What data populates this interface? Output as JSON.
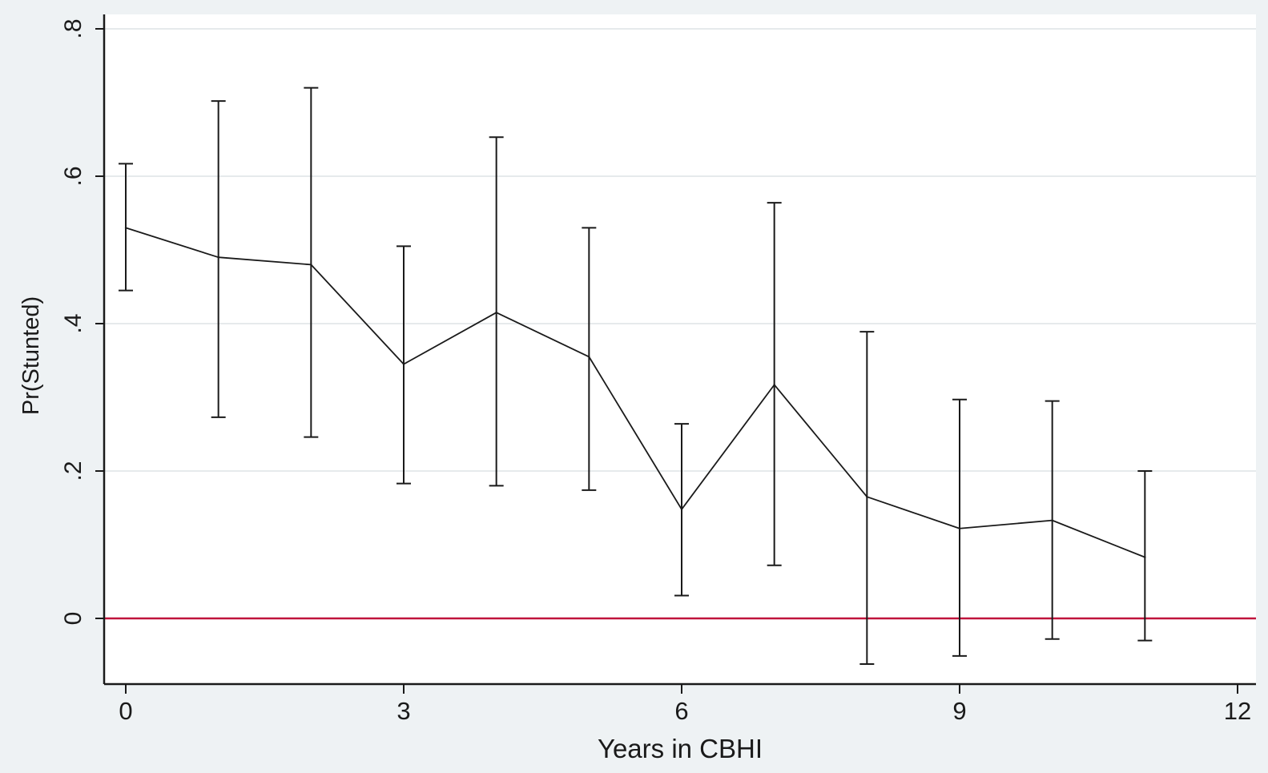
{
  "chart_data": {
    "type": "line",
    "title": "",
    "xlabel": "Years in CBHI",
    "ylabel": "Pr(Stunted)",
    "xlim": [
      0,
      12
    ],
    "ylim": [
      -0.09,
      0.8
    ],
    "x_ticks": [
      {
        "value": 0,
        "label": "0"
      },
      {
        "value": 3,
        "label": "3"
      },
      {
        "value": 6,
        "label": "6"
      },
      {
        "value": 9,
        "label": "9"
      },
      {
        "value": 12,
        "label": "12"
      }
    ],
    "y_ticks": [
      {
        "value": 0,
        "label": "0"
      },
      {
        "value": 0.2,
        "label": ".2"
      },
      {
        "value": 0.4,
        "label": ".4"
      },
      {
        "value": 0.6,
        "label": ".6"
      },
      {
        "value": 0.8,
        "label": ".8"
      }
    ],
    "reference_line": {
      "y": 0,
      "color": "#c0143c"
    },
    "grid": "horizontal",
    "colors": {
      "line": "#1a1a1a",
      "error_bar": "#1a1a1a",
      "grid": "#dde3e6",
      "plot_bg": "#ffffff"
    },
    "series": [
      {
        "x": [
          0,
          1,
          2,
          3,
          4,
          5,
          6,
          7,
          8,
          9,
          10,
          11
        ],
        "values": [
          0.53,
          0.49,
          0.48,
          0.345,
          0.415,
          0.355,
          0.148,
          0.317,
          0.165,
          0.122,
          0.133,
          0.083
        ],
        "ci_lower": [
          0.445,
          0.273,
          0.246,
          0.183,
          0.18,
          0.174,
          0.031,
          0.072,
          -0.062,
          -0.051,
          -0.028,
          -0.03
        ],
        "ci_upper": [
          0.617,
          0.702,
          0.72,
          0.505,
          0.653,
          0.53,
          0.264,
          0.564,
          0.389,
          0.297,
          0.295,
          0.2
        ]
      }
    ]
  }
}
